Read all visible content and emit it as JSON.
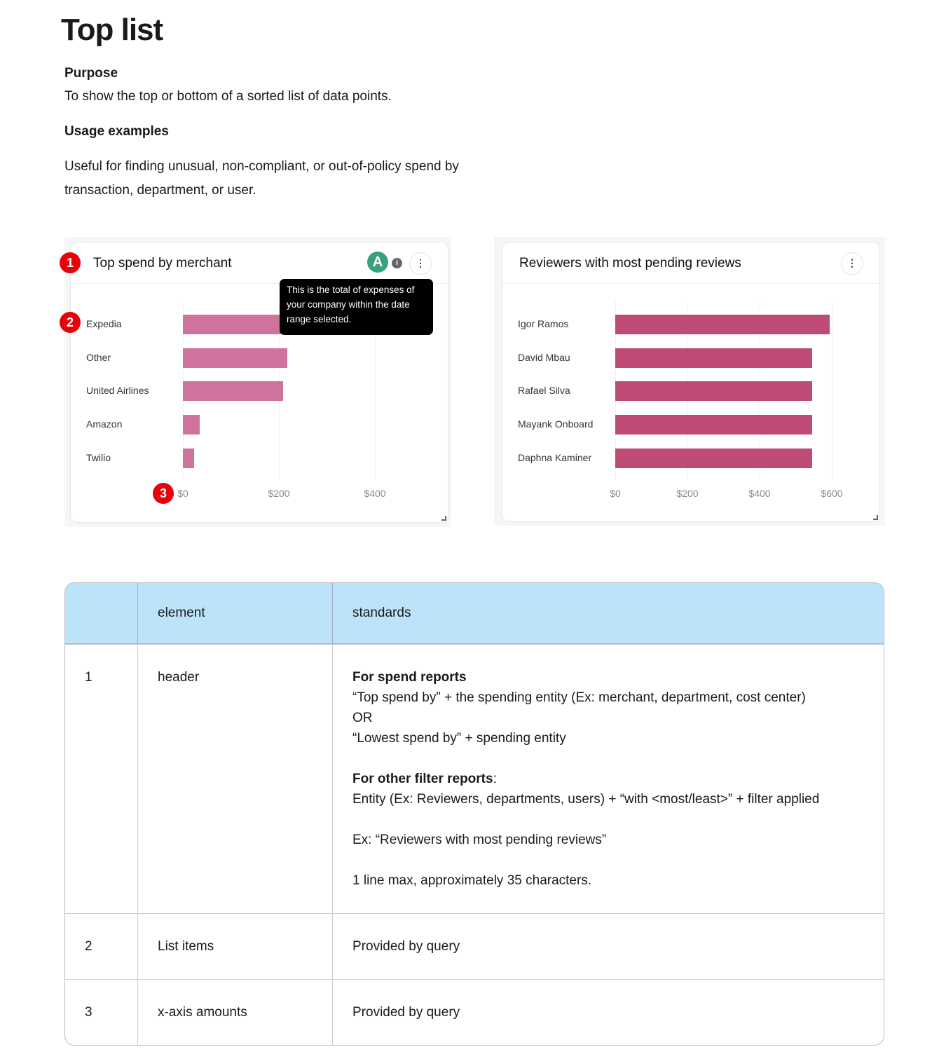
{
  "title": "Top list",
  "purpose": {
    "heading": "Purpose",
    "text": "To show the top or bottom of a sorted list of data points."
  },
  "usage": {
    "heading": "Usage examples",
    "text": "Useful for finding unusual, non-compliant, or out-of-policy spend by transaction, department, or user."
  },
  "card1": {
    "title": "Top spend by merchant",
    "avatar": "A",
    "avatar_color": "#3aa17e",
    "info_icon": "info-icon",
    "menu_icon": "kebab-icon",
    "tooltip": "This is the total of expenses of your company within the date range selected.",
    "badges": [
      "1",
      "2",
      "3"
    ]
  },
  "card2": {
    "title": "Reviewers with most pending reviews",
    "menu_icon": "kebab-icon"
  },
  "chart_data": [
    {
      "type": "bar",
      "orientation": "horizontal",
      "title": "Top spend by merchant",
      "categories": [
        "Expedia",
        "Other",
        "United Airlines",
        "Amazon",
        "Twilio"
      ],
      "values": [
        230,
        217,
        209,
        35,
        23
      ],
      "xticks": [
        "$0",
        "$200",
        "$400"
      ],
      "xlim": [
        0,
        500
      ],
      "color": "#cf739e",
      "grid": true
    },
    {
      "type": "bar",
      "orientation": "horizontal",
      "title": "Reviewers with most pending reviews",
      "categories": [
        "Igor Ramos",
        "David Mbau",
        "Rafael Silva",
        "Mayank Onboard",
        "Daphna Kaminer"
      ],
      "values": [
        594,
        546,
        546,
        546,
        546
      ],
      "xticks": [
        "$0",
        "$200",
        "$400",
        "$600"
      ],
      "xlim": [
        0,
        660
      ],
      "color": "#c04a76",
      "grid": true
    }
  ],
  "table": {
    "headers": [
      "",
      "element",
      "standards"
    ],
    "rows": [
      {
        "num": "1",
        "element": "header",
        "s1h": "For spend reports",
        "s1a": "“Top spend by” + the spending entity (Ex: merchant, department, cost center)",
        "s1b": "OR",
        "s1c": "“Lowest spend by” + spending entity",
        "s2h": "For other filter reports",
        "s2a": "Entity (Ex: Reviewers, departments, users) + “with <most/least>” + filter applied",
        "s3": "Ex: “Reviewers with most pending reviews”",
        "s4": "1 line max, approximately 35 characters."
      },
      {
        "num": "2",
        "element": "List items",
        "standards": "Provided by query"
      },
      {
        "num": "3",
        "element": "x-axis amounts",
        "standards": "Provided by query"
      }
    ]
  }
}
